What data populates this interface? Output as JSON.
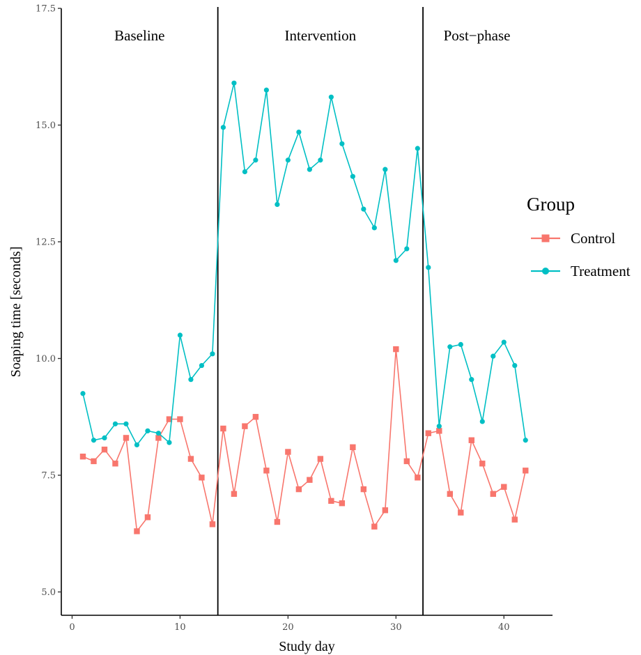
{
  "chart_data": {
    "type": "line",
    "xlabel": "Study day",
    "ylabel": "Soaping time [seconds]",
    "xlim": [
      -1,
      44.5
    ],
    "ylim": [
      4.5,
      17.5
    ],
    "x_ticks": [
      0,
      10,
      20,
      30,
      40
    ],
    "y_ticks": [
      5.0,
      7.5,
      10.0,
      12.5,
      15.0,
      17.5
    ],
    "x_tick_labels": [
      "0",
      "10",
      "20",
      "30",
      "40"
    ],
    "y_tick_labels": [
      "5.0",
      "7.5",
      "10.0",
      "12.5",
      "15.0",
      "17.5"
    ],
    "grid": false,
    "legend_position": "right",
    "legend_title": "Group",
    "phase_boundaries": [
      13.5,
      32.5
    ],
    "phase_labels": [
      {
        "text": "Baseline",
        "x": 6.25
      },
      {
        "text": "Intervention",
        "x": 23.0
      },
      {
        "text": "Post−phase",
        "x": 37.5
      }
    ],
    "series": [
      {
        "name": "Control",
        "color": "#F8766D",
        "marker": "square",
        "x": [
          1,
          2,
          3,
          4,
          5,
          6,
          7,
          8,
          9,
          10,
          11,
          12,
          13,
          14,
          15,
          16,
          17,
          18,
          19,
          20,
          21,
          22,
          23,
          24,
          25,
          26,
          27,
          28,
          29,
          30,
          31,
          32,
          33,
          34,
          35,
          36,
          37,
          38,
          39,
          40,
          41,
          42
        ],
        "values": [
          7.9,
          7.8,
          8.05,
          7.75,
          8.3,
          6.3,
          6.6,
          8.3,
          8.7,
          8.7,
          7.85,
          7.45,
          6.45,
          8.5,
          7.1,
          8.55,
          8.75,
          7.6,
          6.5,
          8.0,
          7.2,
          7.4,
          7.85,
          6.95,
          6.9,
          8.1,
          7.2,
          6.4,
          6.75,
          10.2,
          7.8,
          7.45,
          8.4,
          8.45,
          7.1,
          6.7,
          8.25,
          7.75,
          7.1,
          7.25,
          6.55,
          7.6
        ]
      },
      {
        "name": "Treatment",
        "color": "#00BFC4",
        "marker": "circle",
        "x": [
          1,
          2,
          3,
          4,
          5,
          6,
          7,
          8,
          9,
          10,
          11,
          12,
          13,
          14,
          15,
          16,
          17,
          18,
          19,
          20,
          21,
          22,
          23,
          24,
          25,
          26,
          27,
          28,
          29,
          30,
          31,
          32,
          33,
          34,
          35,
          36,
          37,
          38,
          39,
          40,
          41,
          42
        ],
        "values": [
          9.25,
          8.25,
          8.3,
          8.6,
          8.6,
          8.15,
          8.45,
          8.4,
          8.2,
          10.5,
          9.55,
          9.85,
          10.1,
          14.95,
          15.9,
          14.0,
          14.25,
          15.75,
          13.3,
          14.25,
          14.85,
          14.05,
          14.25,
          15.6,
          14.6,
          13.9,
          13.2,
          12.8,
          14.05,
          12.1,
          12.35,
          14.5,
          11.95,
          8.55,
          10.25,
          10.3,
          9.55,
          8.65,
          10.05,
          10.35,
          9.85,
          8.25
        ]
      }
    ]
  }
}
